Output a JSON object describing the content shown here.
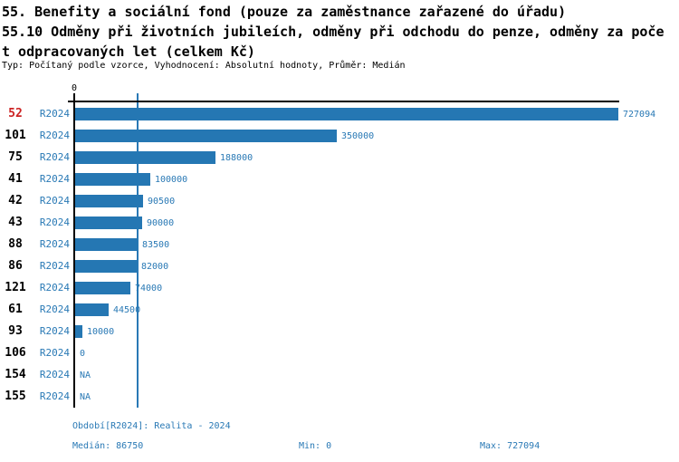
{
  "header": {
    "title_line1": "55. Benefity a sociální fond (pouze za zaměstnance zařazené do úřadu)",
    "title_line2": "55.10 Odměny při životních jubileích, odměny při odchodu do penze, odměny za poče",
    "title_line3": "t odpracovaných let (celkem Kč)",
    "meta_line": "Typ: Počítaný podle vzorce, Vyhodnocení: Absolutní hodnoty, Průměr: Medián"
  },
  "chart_data": {
    "type": "bar",
    "orientation": "horizontal",
    "axis_zero_label": "0",
    "xlim": [
      0,
      727094
    ],
    "max_value": 727094,
    "median_value": 86750,
    "grid": false,
    "rows": [
      {
        "id": "52",
        "period": "R2024",
        "value": 727094,
        "label": "727094",
        "highlight": true
      },
      {
        "id": "101",
        "period": "R2024",
        "value": 350000,
        "label": "350000",
        "highlight": false
      },
      {
        "id": "75",
        "period": "R2024",
        "value": 188000,
        "label": "188000",
        "highlight": false
      },
      {
        "id": "41",
        "period": "R2024",
        "value": 100000,
        "label": "100000",
        "highlight": false
      },
      {
        "id": "42",
        "period": "R2024",
        "value": 90500,
        "label": "90500",
        "highlight": false
      },
      {
        "id": "43",
        "period": "R2024",
        "value": 90000,
        "label": "90000",
        "highlight": false
      },
      {
        "id": "88",
        "period": "R2024",
        "value": 83500,
        "label": "83500",
        "highlight": false
      },
      {
        "id": "86",
        "period": "R2024",
        "value": 82000,
        "label": "82000",
        "highlight": false
      },
      {
        "id": "121",
        "period": "R2024",
        "value": 74000,
        "label": "74000",
        "highlight": false
      },
      {
        "id": "61",
        "period": "R2024",
        "value": 44500,
        "label": "44500",
        "highlight": false
      },
      {
        "id": "93",
        "period": "R2024",
        "value": 10000,
        "label": "10000",
        "highlight": false
      },
      {
        "id": "106",
        "period": "R2024",
        "value": 0,
        "label": "0",
        "highlight": false
      },
      {
        "id": "154",
        "period": "R2024",
        "value": null,
        "label": "NA",
        "highlight": false
      },
      {
        "id": "155",
        "period": "R2024",
        "value": null,
        "label": "NA",
        "highlight": false
      }
    ],
    "colors": {
      "bar": "#2577b3",
      "median_line": "#2979b5",
      "blue_text": "#2979b5",
      "highlight_id_text": "#cc2222",
      "axis": "#000000"
    }
  },
  "footer": {
    "period_line": "Období[R2024]: Realita - 2024",
    "median_label": "Medián: 86750",
    "min_label": "Min: 0",
    "max_label": "Max: 727094"
  }
}
